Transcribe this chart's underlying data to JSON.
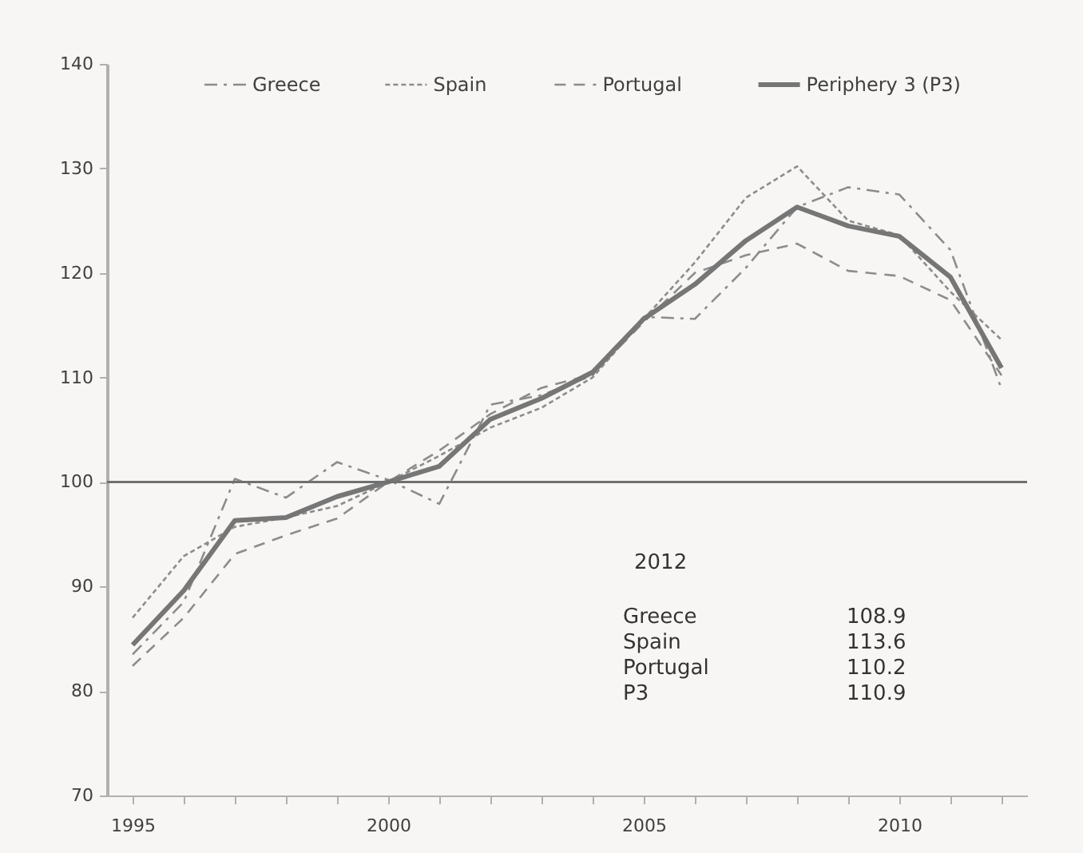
{
  "chart_data": {
    "type": "line",
    "categories": [
      "1995",
      null,
      null,
      null,
      null,
      "2000",
      null,
      null,
      null,
      null,
      "2005",
      null,
      null,
      null,
      null,
      "2010",
      null,
      null
    ],
    "series": [
      {
        "name": "Greece",
        "color": "#8c8c8c",
        "line_style": "dashdot",
        "values": [
          83.5,
          88.5,
          100.3,
          98.5,
          101.9,
          100.2,
          97.9,
          107.4,
          108.3,
          110.2,
          115.8,
          115.6,
          120.5,
          126.3,
          128.2,
          127.5,
          122.2,
          108.9
        ]
      },
      {
        "name": "Spain",
        "color": "#8c8c8c",
        "line_style": "dotted",
        "values": [
          87.0,
          92.9,
          95.7,
          96.6,
          97.7,
          100.0,
          102.5,
          105.2,
          107.1,
          110.0,
          115.6,
          121.0,
          127.2,
          130.2,
          125.0,
          123.6,
          118.2,
          113.6
        ]
      },
      {
        "name": "Portugal",
        "color": "#8c8c8c",
        "line_style": "dashed",
        "values": [
          82.4,
          87.0,
          93.1,
          94.9,
          96.5,
          100.0,
          103.0,
          106.5,
          109.0,
          110.3,
          115.3,
          120.0,
          121.7,
          122.8,
          120.2,
          119.7,
          117.4,
          110.2
        ]
      },
      {
        "name": "Periphery 3 (P3)",
        "color": "#767676",
        "line_style": "solid",
        "values": [
          84.4,
          89.6,
          96.3,
          96.6,
          98.6,
          100.0,
          101.5,
          106.0,
          108.0,
          110.5,
          115.6,
          118.9,
          123.1,
          126.3,
          124.5,
          123.5,
          119.6,
          110.9
        ]
      }
    ],
    "ylim": [
      70,
      140
    ],
    "yticks": [
      70,
      80,
      90,
      100,
      110,
      120,
      130,
      140
    ],
    "grid": false,
    "legend": "top",
    "ref_lines": [
      {
        "axis": "y",
        "value": 100,
        "color": "#707070"
      }
    ],
    "annotations": [
      "2012",
      "Greece",
      "108.9",
      "Spain",
      "113.6",
      "Portugal",
      "110.2",
      "P3",
      "110.9"
    ]
  }
}
